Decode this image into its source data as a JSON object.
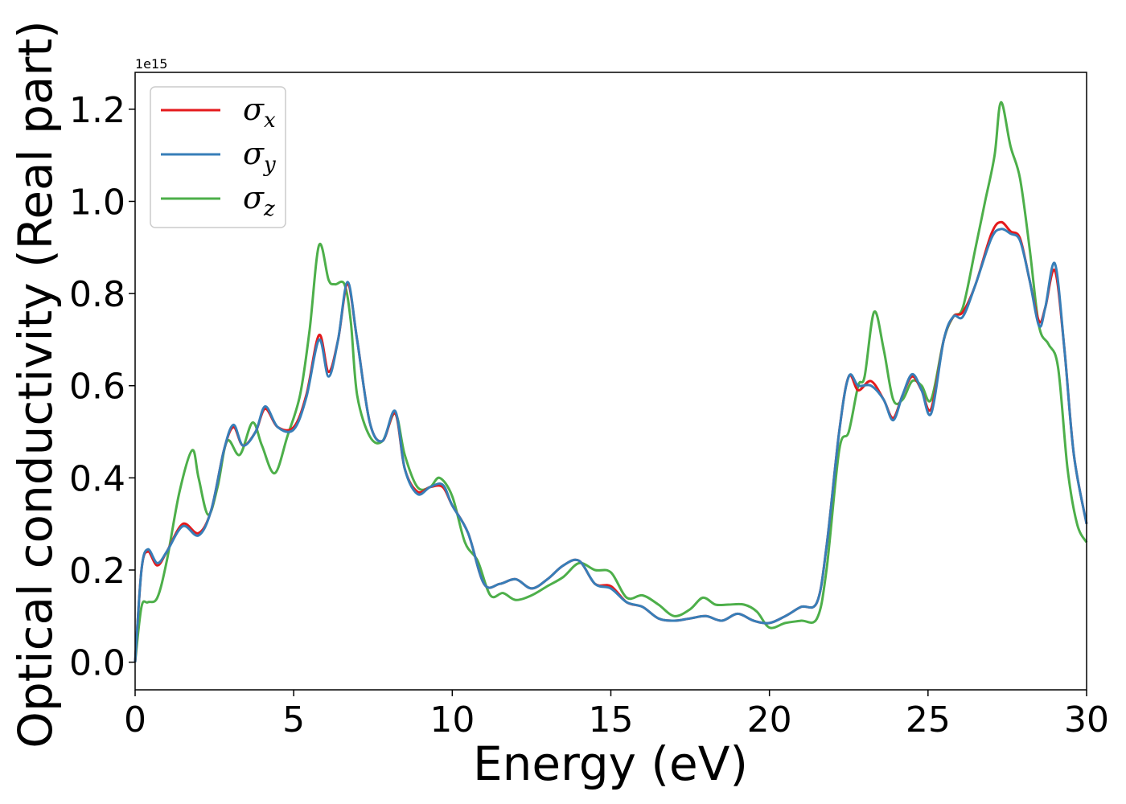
{
  "chart_data": {
    "type": "line",
    "xlabel": "Energy (eV)",
    "ylabel": "Optical conductivity (Real part)",
    "y_offset_label": "1e15",
    "xlim": [
      0,
      30
    ],
    "ylim": [
      -0.06,
      1.28
    ],
    "xticks": [
      0,
      5,
      10,
      15,
      20,
      25,
      30
    ],
    "xtick_labels": [
      "0",
      "5",
      "10",
      "15",
      "20",
      "25",
      "30"
    ],
    "yticks": [
      0.0,
      0.2,
      0.4,
      0.6,
      0.8,
      1.0,
      1.2
    ],
    "ytick_labels": [
      "0.0",
      "0.2",
      "0.4",
      "0.6",
      "0.8",
      "1.0",
      "1.2"
    ],
    "grid": false,
    "legend_position": "top-left",
    "series": [
      {
        "name": "σ",
        "subscript": "x",
        "color": "#e41a1c",
        "x": [
          0,
          0.2,
          0.4,
          0.7,
          1.0,
          1.5,
          2.0,
          2.4,
          2.8,
          3.1,
          3.4,
          3.8,
          4.1,
          4.5,
          5.0,
          5.4,
          5.8,
          6.1,
          6.4,
          6.7,
          7.0,
          7.4,
          7.8,
          8.2,
          8.5,
          8.9,
          9.3,
          9.7,
          10.0,
          10.5,
          11.0,
          11.5,
          12.0,
          12.5,
          13.0,
          13.5,
          14.0,
          14.5,
          15.0,
          15.5,
          16.0,
          16.5,
          17.0,
          17.5,
          18.0,
          18.5,
          19.0,
          19.5,
          20.0,
          20.5,
          21.0,
          21.5,
          21.8,
          22.2,
          22.5,
          22.8,
          23.2,
          23.6,
          23.9,
          24.2,
          24.5,
          24.8,
          25.1,
          25.5,
          25.8,
          26.1,
          26.5,
          27.0,
          27.3,
          27.6,
          27.9,
          28.2,
          28.5,
          28.7,
          29.0,
          29.3,
          29.6,
          30.0
        ],
        "y": [
          0.0,
          0.2,
          0.24,
          0.21,
          0.24,
          0.3,
          0.28,
          0.33,
          0.46,
          0.51,
          0.47,
          0.5,
          0.55,
          0.51,
          0.51,
          0.58,
          0.71,
          0.63,
          0.7,
          0.82,
          0.7,
          0.52,
          0.48,
          0.54,
          0.42,
          0.37,
          0.38,
          0.38,
          0.34,
          0.28,
          0.17,
          0.17,
          0.18,
          0.16,
          0.18,
          0.21,
          0.22,
          0.17,
          0.165,
          0.13,
          0.12,
          0.095,
          0.09,
          0.095,
          0.1,
          0.09,
          0.105,
          0.09,
          0.085,
          0.1,
          0.12,
          0.13,
          0.25,
          0.5,
          0.62,
          0.59,
          0.61,
          0.57,
          0.53,
          0.58,
          0.62,
          0.59,
          0.55,
          0.7,
          0.75,
          0.76,
          0.82,
          0.93,
          0.955,
          0.935,
          0.92,
          0.83,
          0.74,
          0.77,
          0.85,
          0.68,
          0.45,
          0.3
        ]
      },
      {
        "name": "σ",
        "subscript": "y",
        "color": "#377eb8",
        "x": [
          0,
          0.2,
          0.4,
          0.7,
          1.0,
          1.5,
          2.0,
          2.4,
          2.8,
          3.1,
          3.4,
          3.8,
          4.1,
          4.5,
          5.0,
          5.4,
          5.8,
          6.1,
          6.4,
          6.7,
          7.0,
          7.4,
          7.8,
          8.2,
          8.5,
          8.9,
          9.3,
          9.7,
          10.0,
          10.5,
          11.0,
          11.5,
          12.0,
          12.5,
          13.0,
          13.5,
          14.0,
          14.5,
          15.0,
          15.5,
          16.0,
          16.5,
          17.0,
          17.5,
          18.0,
          18.5,
          19.0,
          19.5,
          20.0,
          20.5,
          21.0,
          21.5,
          21.8,
          22.2,
          22.5,
          22.8,
          23.2,
          23.6,
          23.9,
          24.2,
          24.5,
          24.8,
          25.1,
          25.5,
          25.8,
          26.1,
          26.5,
          27.0,
          27.3,
          27.6,
          27.9,
          28.2,
          28.5,
          28.7,
          29.0,
          29.3,
          29.6,
          30.0
        ],
        "y": [
          0.0,
          0.2,
          0.245,
          0.215,
          0.24,
          0.295,
          0.275,
          0.33,
          0.46,
          0.515,
          0.47,
          0.5,
          0.555,
          0.51,
          0.505,
          0.575,
          0.7,
          0.62,
          0.7,
          0.825,
          0.7,
          0.52,
          0.48,
          0.545,
          0.42,
          0.365,
          0.38,
          0.385,
          0.34,
          0.28,
          0.17,
          0.17,
          0.18,
          0.16,
          0.18,
          0.21,
          0.22,
          0.17,
          0.16,
          0.13,
          0.12,
          0.095,
          0.09,
          0.095,
          0.1,
          0.09,
          0.105,
          0.09,
          0.085,
          0.1,
          0.12,
          0.13,
          0.25,
          0.5,
          0.62,
          0.6,
          0.6,
          0.57,
          0.525,
          0.58,
          0.625,
          0.59,
          0.54,
          0.7,
          0.75,
          0.75,
          0.82,
          0.92,
          0.94,
          0.93,
          0.915,
          0.83,
          0.73,
          0.77,
          0.865,
          0.68,
          0.45,
          0.3
        ]
      },
      {
        "name": "σ",
        "subscript": "z",
        "color": "#4daf4a",
        "x": [
          0,
          0.2,
          0.4,
          0.7,
          1.0,
          1.4,
          1.8,
          2.0,
          2.3,
          2.6,
          2.9,
          3.3,
          3.7,
          4.0,
          4.4,
          4.8,
          5.2,
          5.5,
          5.8,
          6.1,
          6.3,
          6.6,
          6.8,
          7.0,
          7.4,
          7.8,
          8.2,
          8.5,
          8.9,
          9.3,
          9.6,
          10.0,
          10.4,
          10.8,
          11.2,
          11.6,
          12.0,
          12.5,
          13.0,
          13.5,
          14.0,
          14.5,
          15.0,
          15.5,
          16.0,
          16.5,
          17.0,
          17.5,
          17.9,
          18.3,
          18.7,
          19.2,
          19.6,
          20.0,
          20.5,
          21.0,
          21.5,
          21.8,
          22.2,
          22.5,
          22.8,
          23.0,
          23.3,
          23.6,
          23.9,
          24.2,
          24.5,
          24.8,
          25.1,
          25.5,
          25.8,
          26.1,
          26.5,
          26.8,
          27.1,
          27.3,
          27.6,
          27.9,
          28.2,
          28.5,
          28.8,
          29.1,
          29.4,
          29.7,
          30.0
        ],
        "y": [
          0.0,
          0.12,
          0.13,
          0.14,
          0.22,
          0.37,
          0.46,
          0.4,
          0.32,
          0.38,
          0.48,
          0.45,
          0.52,
          0.47,
          0.41,
          0.49,
          0.58,
          0.72,
          0.905,
          0.83,
          0.82,
          0.82,
          0.74,
          0.58,
          0.49,
          0.48,
          0.54,
          0.45,
          0.38,
          0.38,
          0.4,
          0.36,
          0.26,
          0.22,
          0.145,
          0.15,
          0.135,
          0.145,
          0.165,
          0.185,
          0.215,
          0.2,
          0.195,
          0.14,
          0.145,
          0.125,
          0.1,
          0.115,
          0.14,
          0.125,
          0.125,
          0.125,
          0.11,
          0.075,
          0.085,
          0.09,
          0.095,
          0.2,
          0.46,
          0.5,
          0.6,
          0.62,
          0.76,
          0.68,
          0.57,
          0.57,
          0.61,
          0.6,
          0.57,
          0.7,
          0.75,
          0.77,
          0.9,
          1.0,
          1.1,
          1.215,
          1.12,
          1.05,
          0.9,
          0.73,
          0.69,
          0.64,
          0.42,
          0.3,
          0.26
        ]
      }
    ]
  }
}
